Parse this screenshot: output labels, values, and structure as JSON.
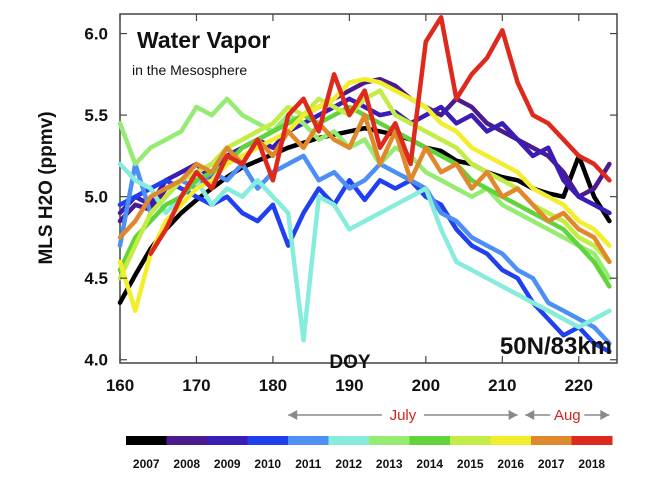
{
  "chart_data": {
    "type": "line",
    "title": "Water Vapor",
    "subtitle": "in the Mesosphere",
    "location_label": "50N/83km",
    "xlabel": "DOY",
    "ylabel": "MLS H2O (ppmv)",
    "xlim": [
      160,
      225
    ],
    "ylim": [
      3.98,
      6.12
    ],
    "x_ticks": [
      160,
      170,
      180,
      190,
      200,
      210,
      220
    ],
    "y_ticks": [
      4.0,
      4.5,
      5.0,
      5.5,
      6.0
    ],
    "x_tick_labels": [
      "160",
      "170",
      "180",
      "190",
      "200",
      "210",
      "220"
    ],
    "y_tick_labels": [
      "4.0",
      "4.5",
      "5.0",
      "5.5",
      "6.0"
    ],
    "grid": false,
    "months": [
      {
        "label": "July",
        "start": 182,
        "end": 212
      },
      {
        "label": "Aug",
        "start": 213,
        "end": 224
      }
    ],
    "legend_position": "bottom",
    "x": [
      160,
      162,
      164,
      166,
      168,
      170,
      172,
      174,
      176,
      178,
      180,
      182,
      184,
      186,
      188,
      190,
      192,
      194,
      196,
      198,
      200,
      202,
      204,
      206,
      208,
      210,
      212,
      214,
      216,
      218,
      220,
      222,
      224
    ],
    "series": [
      {
        "name": "2007",
        "color": "#000000",
        "values": [
          4.35,
          4.52,
          4.68,
          4.8,
          4.9,
          4.98,
          5.05,
          5.12,
          5.18,
          5.22,
          5.26,
          5.3,
          5.33,
          5.36,
          5.38,
          5.4,
          5.42,
          5.4,
          5.38,
          5.35,
          5.3,
          5.28,
          5.22,
          5.2,
          5.15,
          5.12,
          5.1,
          5.05,
          5.02,
          5.0,
          5.25,
          5.0,
          4.85
        ]
      },
      {
        "name": "2008",
        "color": "#4b1a8c",
        "values": [
          4.85,
          4.95,
          4.92,
          5.05,
          5.1,
          5.15,
          5.2,
          5.25,
          5.3,
          5.35,
          5.4,
          5.45,
          5.5,
          5.55,
          5.6,
          5.65,
          5.7,
          5.72,
          5.68,
          5.6,
          5.55,
          5.5,
          5.6,
          5.55,
          5.45,
          5.4,
          5.35,
          5.3,
          5.25,
          5.15,
          5.0,
          5.05,
          5.2
        ]
      },
      {
        "name": "2009",
        "color": "#3a1db5",
        "values": [
          4.9,
          5.0,
          4.95,
          5.1,
          5.15,
          5.2,
          5.1,
          5.25,
          5.3,
          5.35,
          5.3,
          5.4,
          5.45,
          5.5,
          5.55,
          5.6,
          5.55,
          5.5,
          5.52,
          5.45,
          5.5,
          5.55,
          5.45,
          5.5,
          5.4,
          5.45,
          5.35,
          5.25,
          5.3,
          5.1,
          5.0,
          4.95,
          4.9
        ]
      },
      {
        "name": "2010",
        "color": "#1f3ff0",
        "values": [
          4.95,
          5.0,
          5.05,
          5.1,
          5.05,
          5.0,
          4.95,
          5.0,
          4.9,
          4.85,
          4.95,
          4.7,
          4.9,
          5.05,
          4.95,
          5.1,
          4.98,
          5.1,
          5.05,
          5.1,
          5.0,
          4.95,
          4.8,
          4.7,
          4.65,
          4.55,
          4.5,
          4.35,
          4.25,
          4.15,
          4.2,
          4.1,
          4.05
        ]
      },
      {
        "name": "2011",
        "color": "#4d8ff5",
        "values": [
          4.7,
          5.2,
          4.9,
          5.0,
          5.1,
          5.05,
          5.15,
          5.1,
          5.2,
          5.05,
          5.15,
          5.2,
          5.25,
          5.1,
          5.15,
          5.05,
          5.1,
          5.2,
          5.15,
          5.1,
          5.05,
          4.9,
          4.85,
          4.75,
          4.7,
          4.65,
          4.55,
          4.5,
          4.35,
          4.3,
          4.25,
          4.2,
          4.1
        ]
      },
      {
        "name": "2012",
        "color": "#86ecdc",
        "values": [
          5.2,
          5.1,
          5.05,
          4.9,
          5.0,
          5.1,
          4.95,
          5.05,
          5.0,
          5.1,
          5.0,
          4.9,
          4.12,
          5.0,
          4.95,
          4.8,
          4.85,
          4.9,
          4.95,
          5.0,
          5.05,
          4.8,
          4.6,
          4.55,
          4.5,
          4.45,
          4.4,
          4.35,
          4.3,
          4.25,
          4.2,
          4.25,
          4.3
        ]
      },
      {
        "name": "2013",
        "color": "#96ec72",
        "values": [
          5.45,
          5.2,
          5.3,
          5.35,
          5.4,
          5.55,
          5.5,
          5.6,
          5.5,
          5.45,
          5.4,
          5.5,
          5.45,
          5.35,
          5.4,
          5.3,
          5.35,
          5.2,
          5.3,
          5.25,
          5.15,
          5.1,
          5.05,
          5.0,
          5.05,
          4.95,
          4.9,
          4.85,
          4.8,
          4.75,
          4.7,
          4.65,
          4.5
        ]
      },
      {
        "name": "2014",
        "color": "#62d43b",
        "values": [
          4.55,
          4.75,
          4.85,
          4.95,
          5.0,
          5.1,
          5.15,
          5.2,
          5.3,
          5.35,
          5.4,
          5.45,
          5.5,
          5.45,
          5.5,
          5.55,
          5.5,
          5.45,
          5.4,
          5.35,
          5.3,
          5.25,
          5.2,
          5.1,
          5.05,
          5.0,
          4.95,
          4.9,
          4.85,
          4.8,
          4.7,
          4.6,
          4.45
        ]
      },
      {
        "name": "2015",
        "color": "#c3ec45",
        "values": [
          4.5,
          4.7,
          4.9,
          5.0,
          5.1,
          5.15,
          5.2,
          5.3,
          5.35,
          5.4,
          5.45,
          5.55,
          5.5,
          5.6,
          5.55,
          5.5,
          5.6,
          5.65,
          5.5,
          5.45,
          5.4,
          5.35,
          5.3,
          5.2,
          5.15,
          5.1,
          5.05,
          4.95,
          4.9,
          4.85,
          4.75,
          4.7,
          4.6
        ]
      },
      {
        "name": "2016",
        "color": "#f3ee2c",
        "values": [
          4.6,
          4.3,
          4.65,
          4.85,
          4.95,
          5.05,
          5.1,
          5.2,
          5.25,
          5.3,
          5.35,
          5.4,
          5.5,
          5.55,
          5.6,
          5.7,
          5.72,
          5.7,
          5.65,
          5.6,
          5.55,
          5.45,
          5.4,
          5.3,
          5.25,
          5.2,
          5.15,
          5.05,
          5.0,
          4.95,
          4.85,
          4.8,
          4.7
        ]
      },
      {
        "name": "2017",
        "color": "#e0882c",
        "values": [
          4.75,
          4.85,
          5.0,
          5.05,
          5.1,
          5.2,
          5.15,
          5.3,
          5.2,
          5.35,
          5.25,
          5.4,
          5.3,
          5.45,
          5.35,
          5.3,
          5.5,
          5.2,
          5.4,
          5.1,
          5.3,
          5.15,
          5.2,
          5.05,
          5.15,
          5.0,
          5.05,
          4.95,
          4.85,
          4.9,
          4.8,
          4.75,
          4.6
        ]
      },
      {
        "name": "2018",
        "color": "#dd2a1c",
        "values": [
          null,
          null,
          4.65,
          4.8,
          5.0,
          5.15,
          5.05,
          5.25,
          5.2,
          5.35,
          5.1,
          5.5,
          5.6,
          5.4,
          5.75,
          5.5,
          5.65,
          5.3,
          5.45,
          5.2,
          5.95,
          6.1,
          5.6,
          5.75,
          5.85,
          6.02,
          5.7,
          5.5,
          5.45,
          5.35,
          5.25,
          5.2,
          5.1
        ]
      }
    ]
  }
}
